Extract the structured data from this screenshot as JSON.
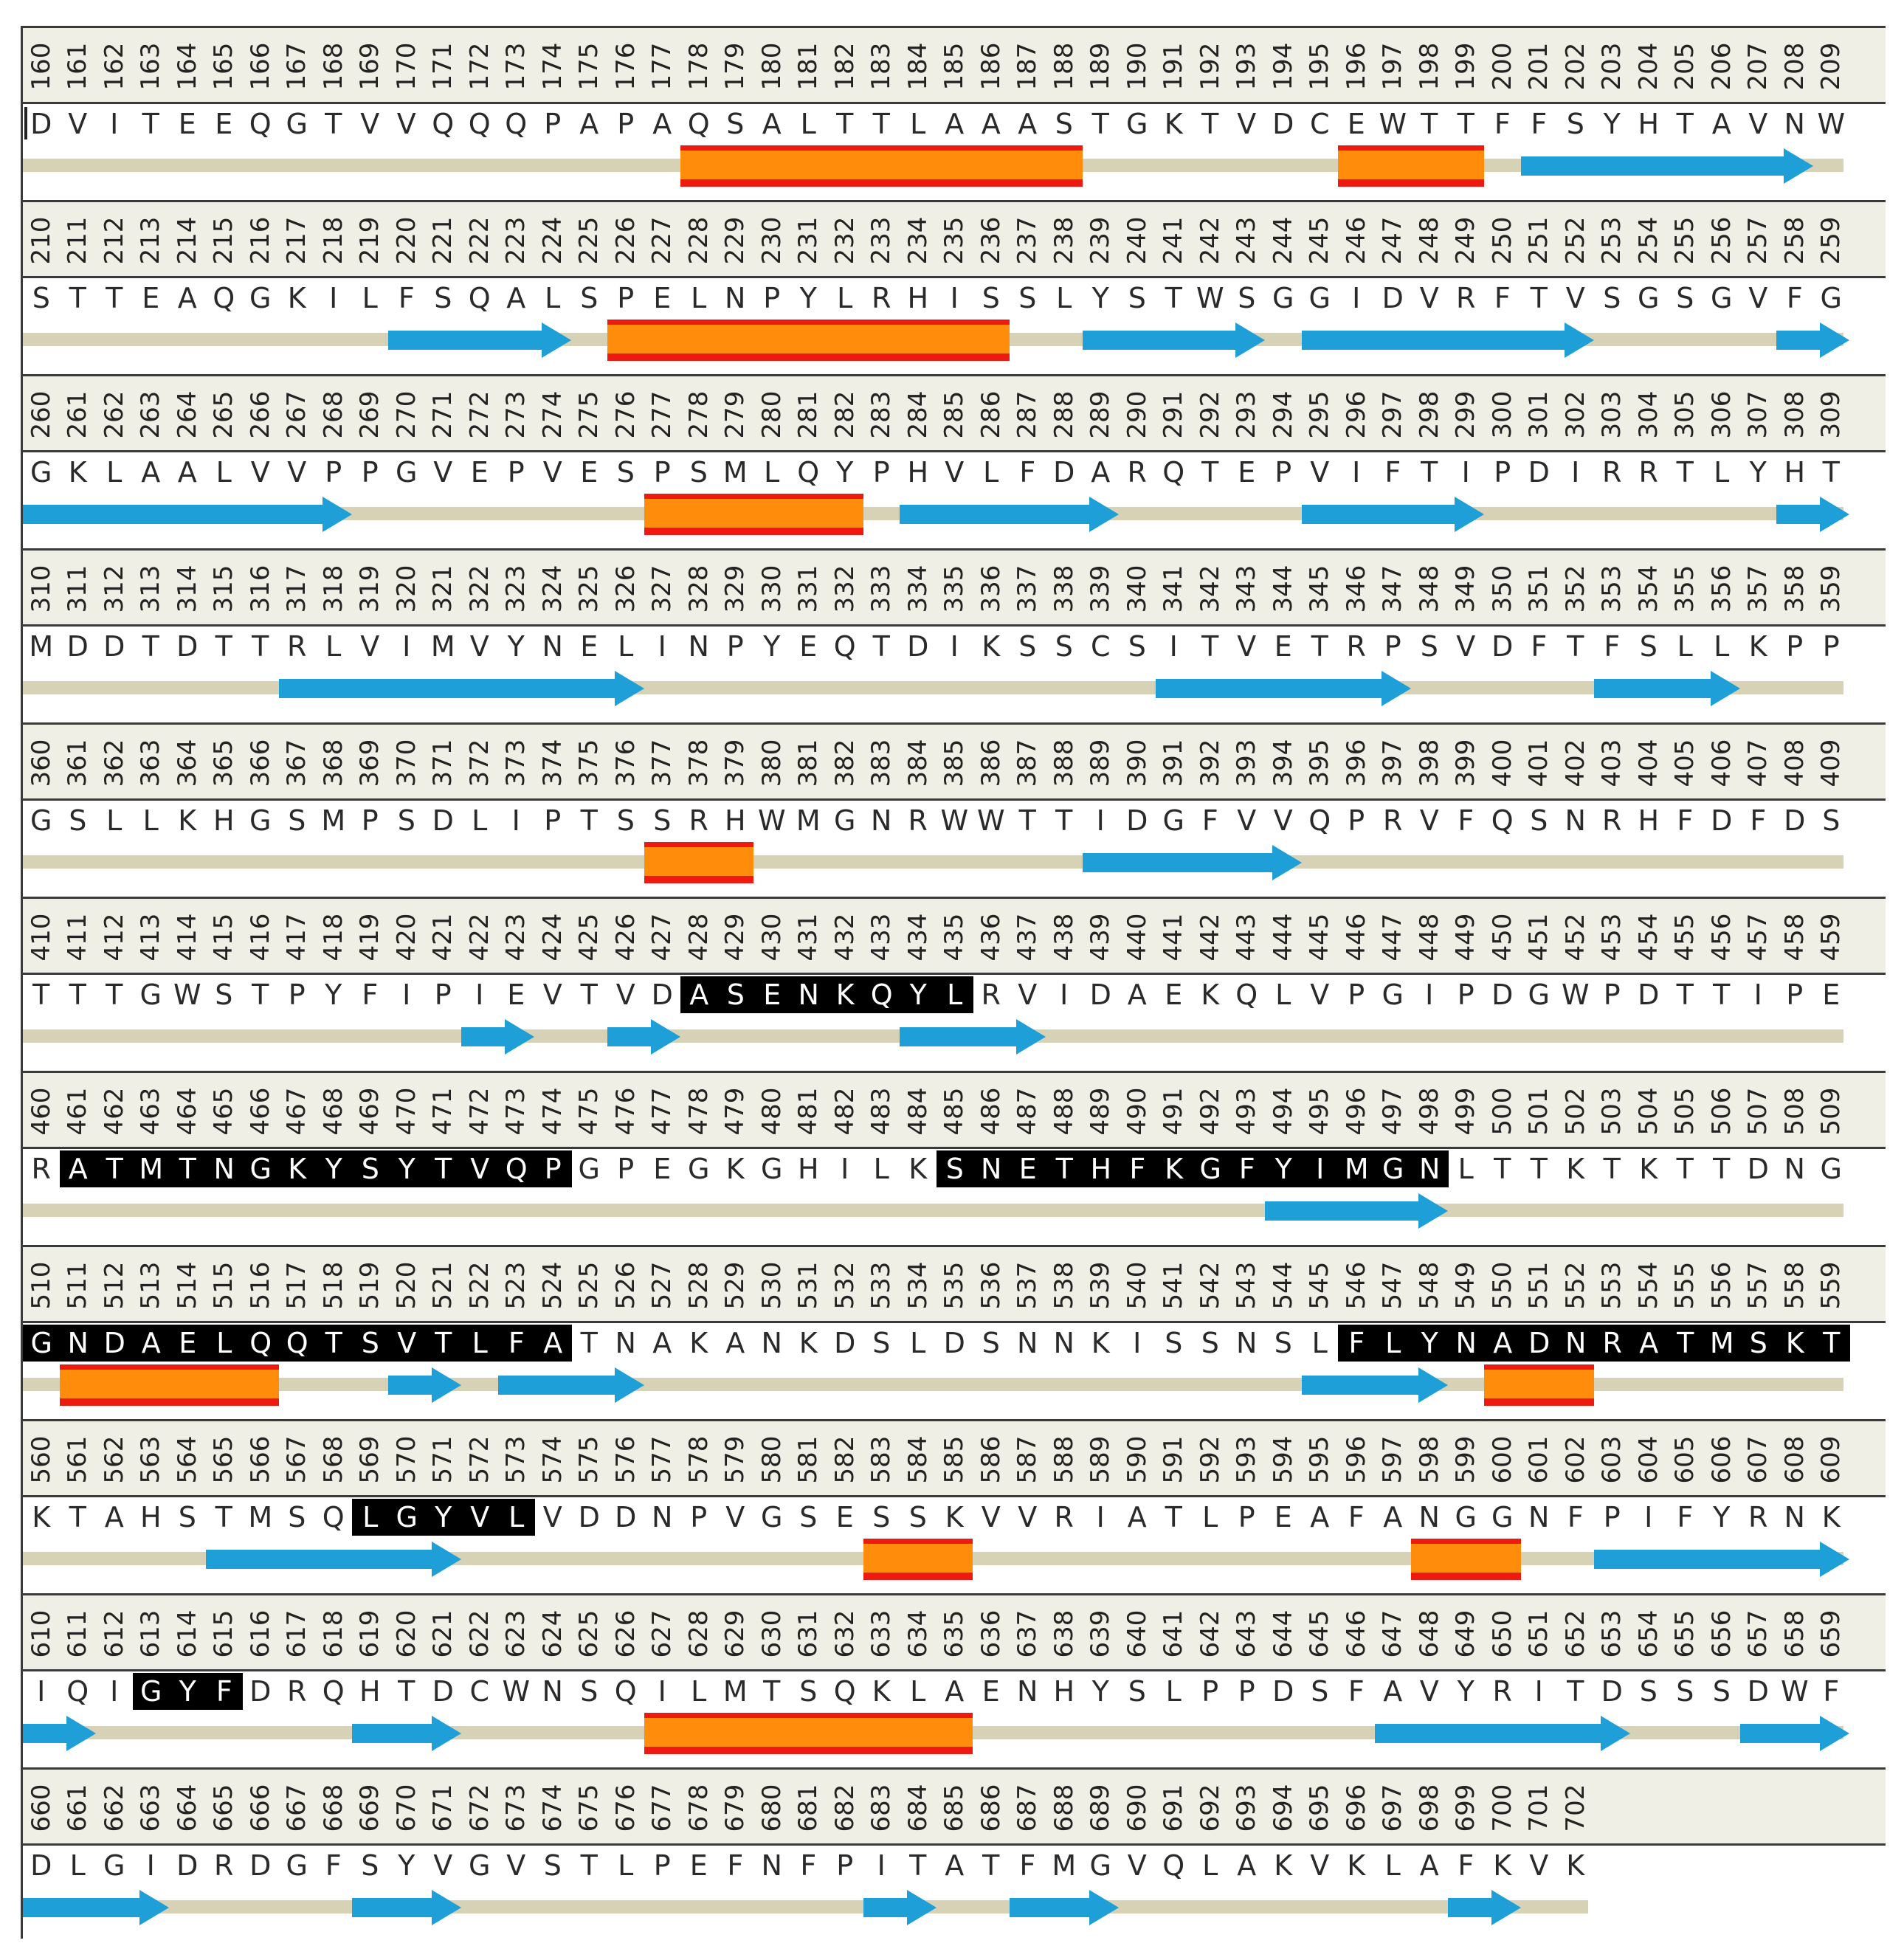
{
  "viewer": "protein sequence secondary structure view",
  "colors": {
    "helix": "#ff8c0a",
    "helix_edge": "#ee1a12",
    "strand": "#1f9fd8",
    "coil": "#d7d2b6",
    "highlight": "#000000",
    "header_bg": "#efefe5"
  },
  "legend_keys": [
    "helix",
    "strand",
    "coil"
  ],
  "rows": [
    {
      "start": 160,
      "seq": "DVITEEQGTVVQQQPAPAQSALTTLAAASTGKTVDCEWTTFFSYHTAVNW",
      "helices": [
        [
          178,
          188
        ],
        [
          196,
          199
        ]
      ],
      "strands": [
        [
          201,
          208
        ]
      ],
      "highlights": []
    },
    {
      "start": 210,
      "seq": "STTEAQGKILFSQALSPELNPYLRHISSLYSTWSGGIDVRFTVSGSGVFG",
      "helices": [
        [
          226,
          229
        ],
        [
          230,
          236
        ]
      ],
      "strands": [
        [
          220,
          224
        ],
        [
          239,
          243
        ],
        [
          245,
          252
        ],
        [
          258,
          259
        ]
      ],
      "highlights": []
    },
    {
      "start": 260,
      "seq": "GKLAALVVPPGVEPVESPSMLQYPHVLFDARQTEPVIFTIPDIRRTLYHT",
      "helices": [
        [
          277,
          282
        ]
      ],
      "strands": [
        [
          260,
          268
        ],
        [
          284,
          289
        ],
        [
          295,
          299
        ],
        [
          308,
          309
        ]
      ],
      "highlights": []
    },
    {
      "start": 310,
      "seq": "MDDTDTTRLVIMVYNELINPYEQTDIKSSCSITVETRPSVDFTFSLLKPP",
      "helices": [],
      "strands": [
        [
          317,
          326
        ],
        [
          341,
          347
        ],
        [
          353,
          356
        ]
      ],
      "highlights": []
    },
    {
      "start": 360,
      "seq": "GSLLKHGSMPSDLIPTSSRHWMGNRWWTTIDGFVVQPRVFQSNRHFDFDS",
      "helices": [
        [
          377,
          379
        ]
      ],
      "strands": [
        [
          389,
          394
        ]
      ],
      "highlights": []
    },
    {
      "start": 410,
      "seq": "TTTGWSTPYFIPIEVTVDASENKQYLRVIDAEKQLVPGIPDGWPDTTIPE",
      "helices": [],
      "strands": [
        [
          422,
          423
        ],
        [
          426,
          427
        ],
        [
          434,
          437
        ]
      ],
      "highlights": [
        [
          428,
          435
        ]
      ]
    },
    {
      "start": 460,
      "seq": "RATMTNGKYSYTVQPGPEGKGHILKSNETHFKGFYIMGNLTTKTKTTDNG",
      "helices": [],
      "strands": [
        [
          494,
          498
        ]
      ],
      "highlights": [
        [
          461,
          474
        ],
        [
          485,
          498
        ]
      ]
    },
    {
      "start": 510,
      "seq": "GNDAELQQTSVTLFATNAKANKDSLDSNNKISSNSLFLYNADNRATMSKT",
      "helices": [
        [
          511,
          516
        ],
        [
          550,
          552
        ]
      ],
      "strands": [
        [
          520,
          521
        ],
        [
          523,
          526
        ],
        [
          545,
          548
        ]
      ],
      "highlights": [
        [
          510,
          524
        ],
        [
          546,
          559
        ]
      ]
    },
    {
      "start": 560,
      "seq": "KTAHSTMSQLGYVLVDDNPVGSESSKVVRIATLPEAFANGGNFPIFYRNK",
      "helices": [
        [
          583,
          585
        ],
        [
          598,
          600
        ]
      ],
      "strands": [
        [
          565,
          571
        ],
        [
          603,
          609
        ]
      ],
      "highlights": [
        [
          569,
          573
        ]
      ]
    },
    {
      "start": 610,
      "seq": "IQIGYFDRQHTDCWNSQILMTSQKLAENHYSLPPDSFAVYRITDSSSDWF",
      "helices": [
        [
          627,
          635
        ]
      ],
      "strands": [
        [
          610,
          611
        ],
        [
          619,
          621
        ],
        [
          647,
          653
        ],
        [
          657,
          659
        ]
      ],
      "highlights": [
        [
          613,
          615
        ]
      ]
    },
    {
      "start": 660,
      "seq": "DLGIDRDGFSYVGVSTLPEFNFPITATFMGVQLAKVKLAFKVK",
      "helices": [],
      "strands": [
        [
          660,
          663
        ],
        [
          669,
          671
        ],
        [
          683,
          684
        ],
        [
          687,
          689
        ],
        [
          699,
          700
        ]
      ],
      "highlights": []
    }
  ]
}
